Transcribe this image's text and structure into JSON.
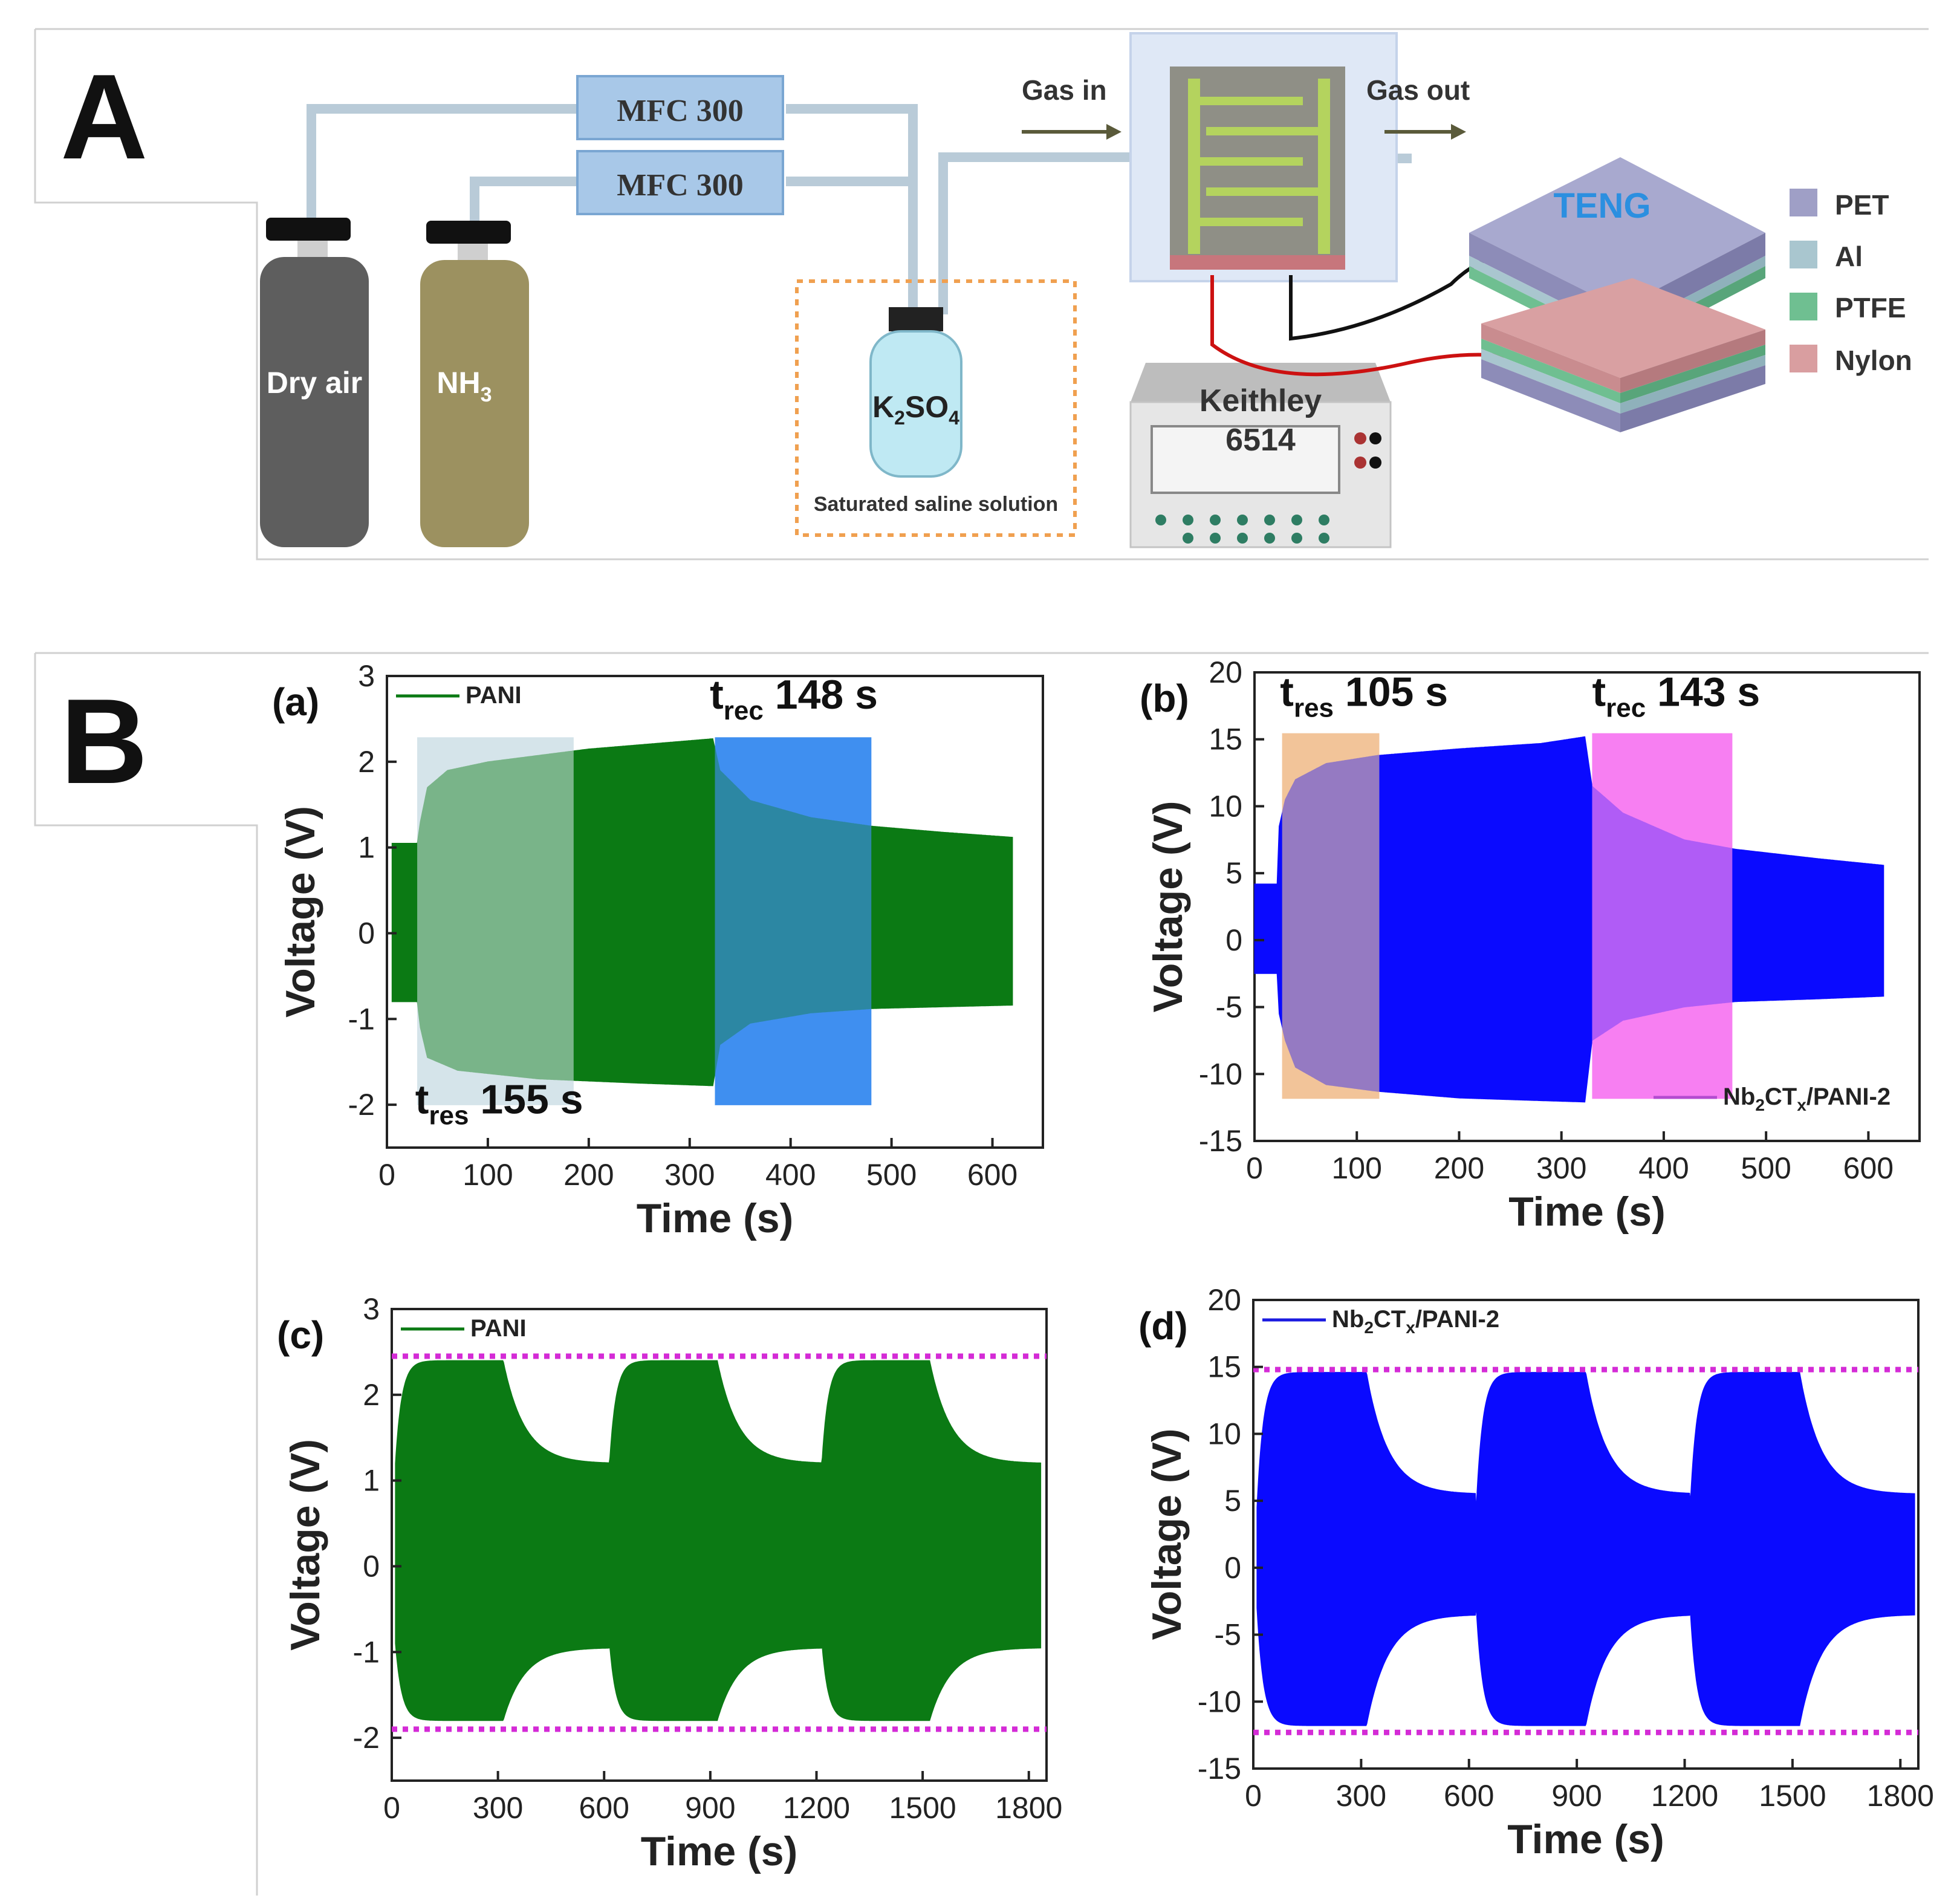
{
  "panels": {
    "a_letter": "A",
    "b_letter": "B"
  },
  "schematic": {
    "mfc_top": "MFC 300",
    "mfc_bottom": "MFC 300",
    "cylinder_air": "Dry air",
    "cylinder_nh3": "NH",
    "cylinder_nh3_sub": "3",
    "bottle_k": "K",
    "bottle_k_sub": "2",
    "bottle_so": "SO",
    "bottle_so_sub": "4",
    "saline": "Saturated saline solution",
    "gas_in": "Gas in",
    "gas_out": "Gas out",
    "keithley": "Keithley",
    "keithley_model": "6514",
    "teng": "TENG",
    "legend": [
      {
        "label": "PET",
        "color": "#9f9fc6"
      },
      {
        "label": "Al",
        "color": "#a9c6cf"
      },
      {
        "label": "PTFE",
        "color": "#6fbf91"
      },
      {
        "label": "Nylon",
        "color": "#d99ea0"
      }
    ]
  },
  "chart_data": [
    {
      "id": "a",
      "sub_label": "(a)",
      "type": "line",
      "fill": "envelope",
      "title": "",
      "xlabel": "Time (s)",
      "ylabel": "Voltage (V)",
      "xlim": [
        0,
        650
      ],
      "ylim": [
        -2.5,
        3
      ],
      "xticks": [
        0,
        100,
        200,
        300,
        400,
        500,
        600
      ],
      "yticks": [
        -2,
        -1,
        0,
        1,
        2,
        3
      ],
      "series": [
        {
          "name": "PANI",
          "color": "#0b7a14",
          "upper": [
            [
              5,
              1.05
            ],
            [
              30,
              1.05
            ],
            [
              33,
              1.3
            ],
            [
              40,
              1.7
            ],
            [
              60,
              1.9
            ],
            [
              100,
              2.0
            ],
            [
              200,
              2.15
            ],
            [
              323,
              2.27
            ],
            [
              330,
              1.9
            ],
            [
              360,
              1.55
            ],
            [
              420,
              1.35
            ],
            [
              480,
              1.25
            ],
            [
              550,
              1.18
            ],
            [
              620,
              1.12
            ]
          ],
          "lower": [
            [
              5,
              -0.8
            ],
            [
              30,
              -0.8
            ],
            [
              33,
              -1.1
            ],
            [
              40,
              -1.45
            ],
            [
              70,
              -1.6
            ],
            [
              150,
              -1.7
            ],
            [
              250,
              -1.75
            ],
            [
              323,
              -1.78
            ],
            [
              330,
              -1.3
            ],
            [
              360,
              -1.05
            ],
            [
              420,
              -0.93
            ],
            [
              480,
              -0.88
            ],
            [
              550,
              -0.86
            ],
            [
              620,
              -0.84
            ]
          ]
        }
      ],
      "regions": [
        {
          "x0": 30,
          "x1": 185,
          "color": "#d6e4ea",
          "opacity": 0.55
        },
        {
          "x0": 325,
          "x1": 480,
          "color": "#3f8ff0",
          "opacity": 0.65
        }
      ],
      "annotations": [
        {
          "main": "t",
          "sub": "rec",
          "value": " 148 s",
          "x": 320,
          "y": 2.62
        },
        {
          "main": "t",
          "sub": "res",
          "value": " 155 s",
          "x": 28,
          "y": -2.1
        }
      ],
      "legend": {
        "label": "PANI",
        "color": "#0b7a14",
        "position": "top-left"
      }
    },
    {
      "id": "b",
      "sub_label": "(b)",
      "type": "line",
      "fill": "envelope",
      "title": "",
      "xlabel": "Time (s)",
      "ylabel": "Voltage (V)",
      "xlim": [
        0,
        650
      ],
      "ylim": [
        -15,
        20
      ],
      "xticks": [
        0,
        100,
        200,
        300,
        400,
        500,
        600
      ],
      "yticks": [
        -15,
        -10,
        -5,
        0,
        5,
        10,
        15,
        20
      ],
      "series": [
        {
          "name": "Nb2CTx/PANI-2",
          "color": "#0a0aff",
          "upper": [
            [
              0,
              4.2
            ],
            [
              22,
              4.2
            ],
            [
              24,
              8.5
            ],
            [
              30,
              10.5
            ],
            [
              40,
              12.0
            ],
            [
              70,
              13.2
            ],
            [
              120,
              13.8
            ],
            [
              200,
              14.3
            ],
            [
              280,
              14.7
            ],
            [
              323,
              15.2
            ],
            [
              330,
              11.5
            ],
            [
              360,
              9.5
            ],
            [
              420,
              7.5
            ],
            [
              470,
              6.8
            ],
            [
              550,
              6.1
            ],
            [
              615,
              5.6
            ]
          ],
          "lower": [
            [
              0,
              -2.5
            ],
            [
              22,
              -2.5
            ],
            [
              24,
              -5.5
            ],
            [
              30,
              -7.5
            ],
            [
              40,
              -9.5
            ],
            [
              70,
              -10.8
            ],
            [
              120,
              -11.3
            ],
            [
              200,
              -11.8
            ],
            [
              280,
              -12.0
            ],
            [
              323,
              -12.1
            ],
            [
              330,
              -7.5
            ],
            [
              360,
              -6.0
            ],
            [
              420,
              -5.0
            ],
            [
              470,
              -4.6
            ],
            [
              550,
              -4.4
            ],
            [
              615,
              -4.2
            ]
          ]
        }
      ],
      "regions": [
        {
          "x0": 27,
          "x1": 122,
          "color": "#f2c49a",
          "opacity": 0.6
        },
        {
          "x0": 330,
          "x1": 467,
          "color": "#f77ff2",
          "opacity": 0.7
        }
      ],
      "annotations": [
        {
          "main": "t",
          "sub": "res",
          "value": " 105 s",
          "x": 25,
          "y": 17.5
        },
        {
          "main": "t",
          "sub": "rec",
          "value": " 143 s",
          "x": 330,
          "y": 17.5
        }
      ],
      "legend": {
        "label": "Nb",
        "sub1": "2",
        "mid": "CT",
        "sub2": "x",
        "tail": "/PANI-2",
        "color": "#b44bd0",
        "position": "bottom-right"
      }
    },
    {
      "id": "c",
      "sub_label": "(c)",
      "type": "line",
      "fill": "envelope",
      "title": "",
      "xlabel": "Time (s)",
      "ylabel": "Voltage (V)",
      "xlim": [
        0,
        1850
      ],
      "ylim": [
        -2.5,
        3
      ],
      "xticks": [
        0,
        300,
        600,
        900,
        1200,
        1500,
        1800
      ],
      "yticks": [
        -2,
        -1,
        0,
        1,
        2,
        3
      ],
      "series": [
        {
          "name": "PANI",
          "color": "#0b7a14",
          "cycle": {
            "starts": [
              10,
              615,
              1215
            ],
            "on": 305,
            "end": 1835,
            "upper_low": 1.2,
            "upper_peak": 2.4,
            "upper_rec": 1.2,
            "lower_low": -0.9,
            "lower_peak": -1.8,
            "lower_rec": -0.95
          }
        }
      ],
      "reference_lines": [
        {
          "y": 2.45,
          "color": "#d42bd6",
          "style": "dotted"
        },
        {
          "y": -1.9,
          "color": "#d42bd6",
          "style": "dotted"
        }
      ],
      "legend": {
        "label": "PANI",
        "color": "#0b7a14",
        "position": "top-left"
      }
    },
    {
      "id": "d",
      "sub_label": "(d)",
      "type": "line",
      "fill": "envelope",
      "title": "",
      "xlabel": "Time (s)",
      "ylabel": "Voltage (V)",
      "xlim": [
        0,
        1850
      ],
      "ylim": [
        -15,
        20
      ],
      "xticks": [
        0,
        300,
        600,
        900,
        1200,
        1500,
        1800
      ],
      "yticks": [
        -15,
        -10,
        -5,
        0,
        5,
        10,
        15,
        20
      ],
      "series": [
        {
          "name": "Nb2CTx/PANI-2",
          "color": "#0a0aff",
          "cycle": {
            "starts": [
              10,
              620,
              1215
            ],
            "on": 305,
            "end": 1840,
            "upper_low": 4.5,
            "upper_peak": 14.6,
            "upper_rec": 5.5,
            "lower_low": -3.0,
            "lower_peak": -11.8,
            "lower_rec": -3.5
          }
        }
      ],
      "reference_lines": [
        {
          "y": 14.8,
          "color": "#d42bd6",
          "style": "dotted"
        },
        {
          "y": -12.3,
          "color": "#d42bd6",
          "style": "dotted"
        }
      ],
      "legend": {
        "label": "Nb",
        "sub1": "2",
        "mid": "CT",
        "sub2": "x",
        "tail": "/PANI-2",
        "color": "#1a1ae0",
        "position": "top-left"
      }
    }
  ]
}
